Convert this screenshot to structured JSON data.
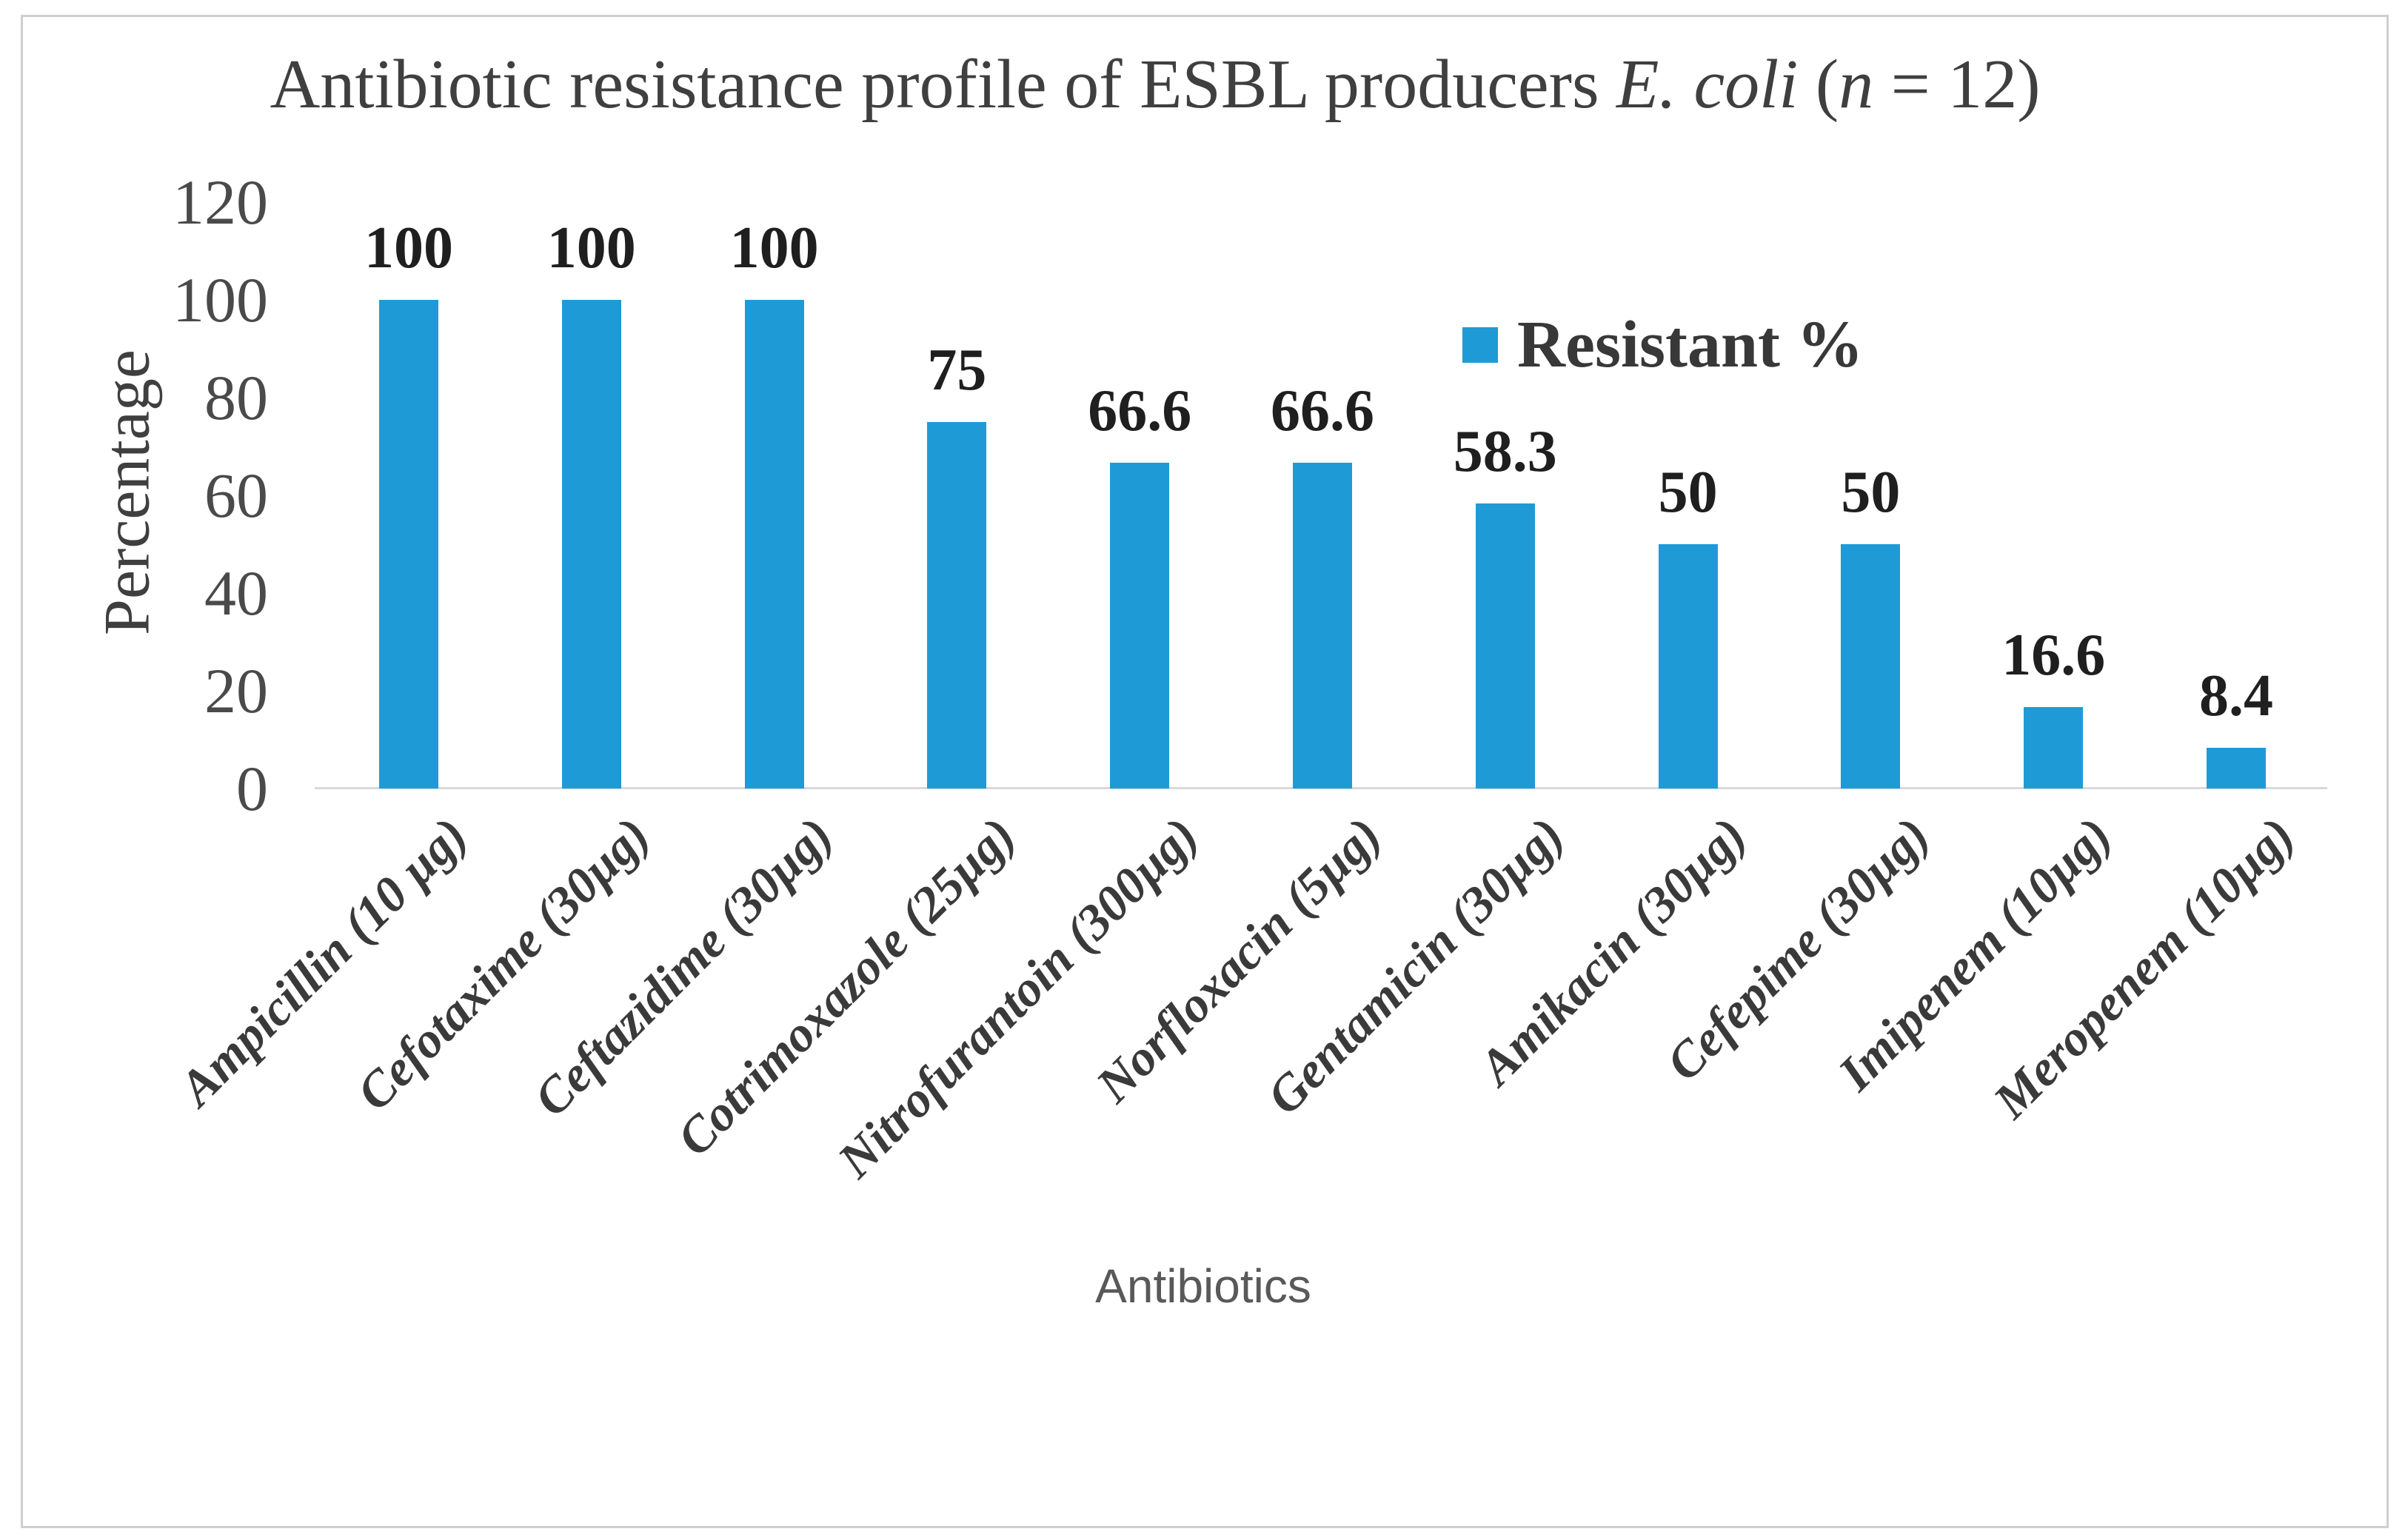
{
  "chart_data": {
    "type": "bar",
    "title": {
      "full": "Antibiotic resistance profile of ESBL producers E. coli (n = 12)",
      "prefix": "Antibiotic resistance profile of ESBL producers ",
      "species_italic": "E. coli",
      "mid": " (",
      "n_italic": "n",
      "suffix": " = 12)"
    },
    "xlabel": "Antibiotics",
    "ylabel": "Percentage",
    "categories": [
      "Ampicillin (10 µg)",
      "Cefotaxime (30µg)",
      "Ceftazidime (30µg)",
      "Cotrimoxazole (25µg)",
      "Nitrofurantoin (300µg)",
      "Norfloxacin (5µg)",
      "Gentamicin (30µg)",
      "Amikacin (30µg)",
      "Cefepime (30µg)",
      "Imipenem (10µg)",
      "Meropenem (10µg)"
    ],
    "series": [
      {
        "name": "Resistant %",
        "values": [
          100,
          100,
          100,
          75,
          66.6,
          66.6,
          58.3,
          50,
          50,
          16.6,
          8.4
        ]
      }
    ],
    "value_labels": [
      "100",
      "100",
      "100",
      "75",
      "66.6",
      "66.6",
      "58.3",
      "50",
      "50",
      "16.6",
      "8.4"
    ],
    "yticks": [
      0,
      20,
      40,
      60,
      80,
      100,
      120
    ],
    "ylim": [
      0,
      120
    ],
    "grid": false,
    "legend": {
      "label": "Resistant %",
      "position": "inside-top-right"
    },
    "colors": {
      "bar": "#1E9BD6",
      "axis_line": "#D9D9D9",
      "tick_text": "#4A4A4A",
      "title_text": "#3F3F3F",
      "value_label_text": "#1F1F1F",
      "x_axis_title_text": "#595959",
      "frame_border": "#CFCFCF"
    }
  }
}
